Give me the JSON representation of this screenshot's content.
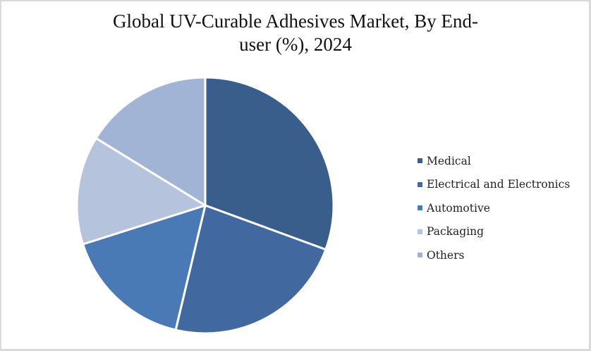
{
  "chart_data": {
    "type": "pie",
    "title": "Global UV-Curable Adhesives Market, By End-user (%), 2024",
    "title_lines": [
      "Global UV-Curable Adhesives Market, By End-",
      "user (%), 2024"
    ],
    "categories": [
      "Medical",
      "Electrical and Electronics",
      "Automotive",
      "Packaging",
      "Others"
    ],
    "values": [
      30.6,
      23.1,
      16.4,
      13.7,
      16.2
    ],
    "colors": [
      "#3A5E8C",
      "#41699F",
      "#4A7AB5",
      "#B5C3DD",
      "#A2B4D5"
    ],
    "start_angle_deg": 0,
    "direction": "clockwise",
    "legend_position": "right",
    "data_labels": false
  },
  "legend": {
    "items": [
      {
        "label": "Medical",
        "color": "#3A5E8C"
      },
      {
        "label": "Electrical and Electronics",
        "color": "#41699F"
      },
      {
        "label": "Automotive",
        "color": "#4A7AB5"
      },
      {
        "label": "Packaging",
        "color": "#B5C3DD"
      },
      {
        "label": "Others",
        "color": "#A2B4D5"
      }
    ]
  }
}
